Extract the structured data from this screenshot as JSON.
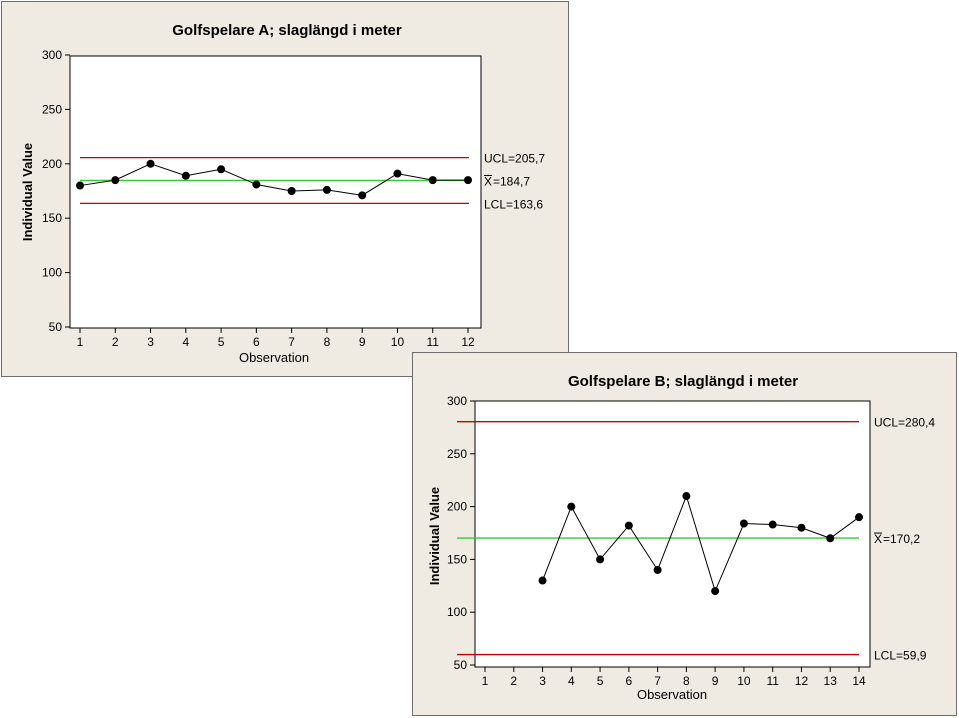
{
  "chart_data": [
    {
      "type": "line",
      "title": "Golfspelare A; slaglängd i meter",
      "xlabel": "Observation",
      "ylabel": "Individual Value",
      "x": [
        1,
        2,
        3,
        4,
        5,
        6,
        7,
        8,
        9,
        10,
        11,
        12
      ],
      "xlim": [
        1,
        12
      ],
      "ylim": [
        50,
        300
      ],
      "yticks": [
        50,
        100,
        150,
        200,
        250,
        300
      ],
      "series": [
        {
          "values": [
            180,
            185,
            200,
            189,
            195,
            181,
            175,
            176,
            171,
            191,
            185,
            185
          ]
        }
      ],
      "control_lines": [
        {
          "label": "UCL=205,7",
          "value": 205.7,
          "color": "#cc0000"
        },
        {
          "label": "184,7",
          "bar_symbol": "X",
          "value": 184.7,
          "color": "#33cc33"
        },
        {
          "label": "LCL=163,6",
          "value": 163.6,
          "color": "#cc0000"
        }
      ]
    },
    {
      "type": "line",
      "title": "Golfspelare B; slaglängd i meter",
      "xlabel": "Observation",
      "ylabel": "Individual Value",
      "x": [
        3,
        4,
        5,
        6,
        7,
        8,
        9,
        10,
        11,
        12,
        13,
        14
      ],
      "xlim": [
        1,
        14
      ],
      "ylim": [
        50,
        300
      ],
      "yticks": [
        50,
        100,
        150,
        200,
        250,
        300
      ],
      "series": [
        {
          "values": [
            130,
            200,
            150,
            182,
            140,
            210,
            120,
            184,
            183,
            180,
            170,
            190
          ]
        }
      ],
      "control_lines": [
        {
          "label": "UCL=280,4",
          "value": 280.4,
          "color": "#cc0000"
        },
        {
          "label": "170,2",
          "bar_symbol": "X",
          "value": 170.2,
          "color": "#33cc33"
        },
        {
          "label": "LCL=59,9",
          "value": 59.9,
          "color": "#cc0000"
        }
      ]
    }
  ]
}
